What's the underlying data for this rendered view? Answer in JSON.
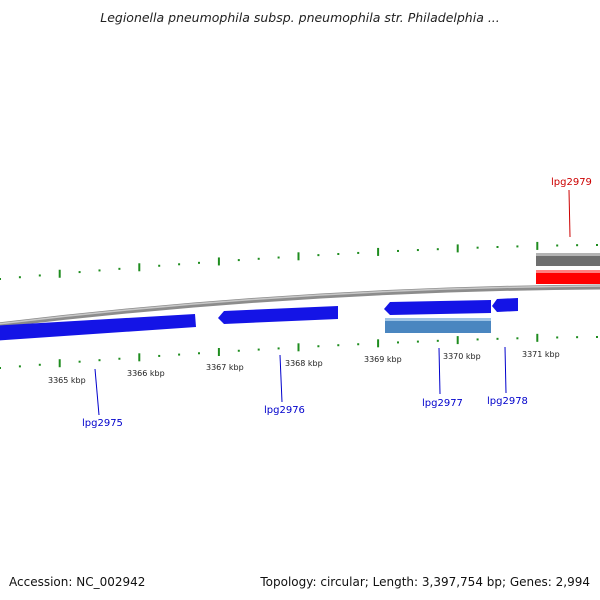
{
  "title": "Legionella pneumophila subsp. pneumophila str. Philadelphia ...",
  "footer": {
    "accession": "Accession: NC_002942",
    "summary": "Topology: circular; Length: 3,397,754 bp; Genes: 2,994"
  },
  "colors": {
    "backbone": "#8c8c8c",
    "forward_gene": "#1414e6",
    "reverse_gene": "#4a86c0",
    "highlight_gene": "#ff0000",
    "other_feature": "#6e6e6e",
    "tick": "#1e8c1e",
    "gene_label": "#0000cc",
    "highlight_label": "#cc0000"
  },
  "scale_labels": [
    "3365 kbp",
    "3366 kbp",
    "3367 kbp",
    "3368 kbp",
    "3369 kbp",
    "3370 kbp",
    "3371 kbp"
  ],
  "genes": [
    {
      "id": "lpg2975",
      "label": "lpg2975"
    },
    {
      "id": "lpg2976",
      "label": "lpg2976"
    },
    {
      "id": "lpg2977",
      "label": "lpg2977"
    },
    {
      "id": "lpg2978",
      "label": "lpg2978"
    },
    {
      "id": "lpg2979",
      "label": "lpg2979"
    }
  ]
}
